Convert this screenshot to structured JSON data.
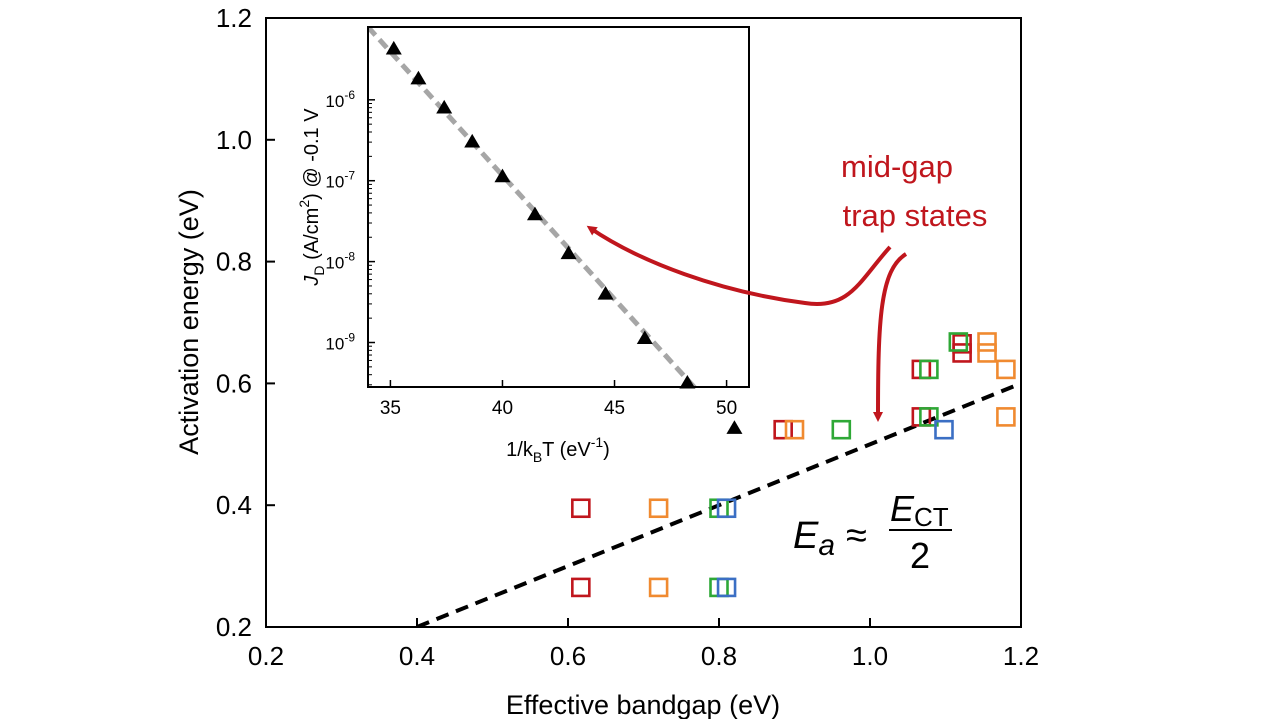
{
  "chart_data": [
    {
      "type": "scatter",
      "xlabel": "Effective bandgap (eV)",
      "ylabel": "Activation energy (eV)",
      "xlim": [
        0.2,
        1.2
      ],
      "ylim": [
        0.2,
        1.2
      ],
      "x_ticks": [
        "0.2",
        "0.4",
        "0.6",
        "0.8",
        "1.0",
        "1.2"
      ],
      "y_ticks": [
        "0.2",
        "0.4",
        "0.6",
        "0.8",
        "1.0",
        "1.2"
      ],
      "marker": "open-square",
      "series": [
        {
          "color": "#c0161d",
          "points": [
            [
              0.617,
              0.265
            ],
            [
              0.617,
              0.395
            ],
            [
              0.885,
              0.524
            ],
            [
              1.068,
              0.545
            ],
            [
              1.068,
              0.623
            ],
            [
              1.122,
              0.65
            ],
            [
              1.122,
              0.665
            ]
          ]
        },
        {
          "color": "#f08a30",
          "points": [
            [
              0.72,
              0.265
            ],
            [
              0.72,
              0.395
            ],
            [
              0.9,
              0.524
            ],
            [
              1.155,
              0.65
            ],
            [
              1.155,
              0.668
            ],
            [
              1.18,
              0.623
            ],
            [
              1.18,
              0.545
            ]
          ]
        },
        {
          "color": "#2ea836",
          "points": [
            [
              0.8,
              0.265
            ],
            [
              0.8,
              0.395
            ],
            [
              0.962,
              0.524
            ],
            [
              1.078,
              0.545
            ],
            [
              1.078,
              0.623
            ],
            [
              1.117,
              0.668
            ]
          ]
        },
        {
          "color": "#3b6fc4",
          "points": [
            [
              0.81,
              0.265
            ],
            [
              0.81,
              0.395
            ],
            [
              1.098,
              0.524
            ]
          ]
        }
      ],
      "fit_line": {
        "style": "dashed",
        "color": "#000000",
        "from": [
          0.4,
          0.2
        ],
        "to": [
          1.2,
          0.6
        ]
      },
      "annotations": {
        "equation": {
          "lhs": "E",
          "lhs_sub": "a",
          "approx": "≈",
          "numerator": "E",
          "numerator_sub": "CT",
          "denominator": "2"
        },
        "callout": {
          "text_line1": "mid-gap",
          "text_line2": "trap states",
          "color": "#c0161d"
        }
      }
    },
    {
      "type": "scatter",
      "inset": true,
      "xlabel": "1/k",
      "xlabel_sub": "B",
      "xlabel_after": "T (eV",
      "xlabel_sup": "-1",
      "xlabel_end": ")",
      "ylabel_J": "J",
      "ylabel_sub": "D",
      "ylabel_mid": " (A/cm",
      "ylabel_sup": "2",
      "ylabel_end": ") @ -0.1 V",
      "xlim": [
        34,
        51
      ],
      "ylim_log10": [
        -9.55,
        -5.1
      ],
      "y_scale": "log",
      "x_ticks": [
        "35",
        "40",
        "45",
        "50"
      ],
      "y_ticks": [
        {
          "base": "10",
          "exp": "-6"
        },
        {
          "base": "10",
          "exp": "-7"
        },
        {
          "base": "10",
          "exp": "-8"
        },
        {
          "base": "10",
          "exp": "-9"
        }
      ],
      "marker": "filled-triangle",
      "x": [
        35.15,
        36.25,
        37.4,
        38.65,
        40.0,
        41.45,
        42.95,
        44.6,
        46.35,
        48.25,
        50.35
      ],
      "log10_y": [
        -5.37,
        -5.74,
        -6.1,
        -6.52,
        -6.95,
        -7.42,
        -7.9,
        -8.4,
        -8.95,
        -9.5,
        -10.06
      ],
      "fit_line": {
        "style": "dashed",
        "color": "#a6a6a6",
        "from": [
          34,
          -5.1
        ],
        "to": [
          51,
          -10.3
        ]
      }
    }
  ]
}
